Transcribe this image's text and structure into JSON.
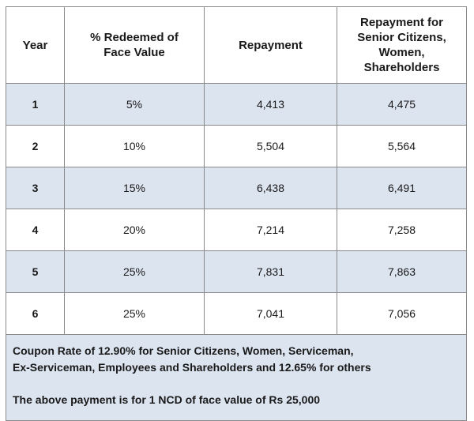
{
  "table": {
    "headers": {
      "year": "Year",
      "redeemed": "% Redeemed of Face Value",
      "repayment": "Repayment",
      "repayment_special": "Repayment for Senior Citizens, Women, Shareholders"
    },
    "rows": [
      {
        "year": "1",
        "redeemed": "5%",
        "repayment": "4,413",
        "repayment_special": "4,475"
      },
      {
        "year": "2",
        "redeemed": "10%",
        "repayment": "5,504",
        "repayment_special": "5,564"
      },
      {
        "year": "3",
        "redeemed": "15%",
        "repayment": "6,438",
        "repayment_special": "6,491"
      },
      {
        "year": "4",
        "redeemed": "20%",
        "repayment": "7,214",
        "repayment_special": "7,258"
      },
      {
        "year": "5",
        "redeemed": "25%",
        "repayment": "7,831",
        "repayment_special": "7,863"
      },
      {
        "year": "6",
        "redeemed": "25%",
        "repayment": "7,041",
        "repayment_special": "7,056"
      }
    ]
  },
  "footer": {
    "coupon_line1": "Coupon Rate of 12.90% for Senior Citizens, Women, Serviceman,",
    "coupon_line2": "Ex-Serviceman, Employees and Shareholders and 12.65% for others",
    "payment_note": "The above payment is for 1 NCD of face value of Rs 25,000"
  },
  "colors": {
    "shaded_row": "#dce4f0",
    "border": "#8a8a8a"
  }
}
